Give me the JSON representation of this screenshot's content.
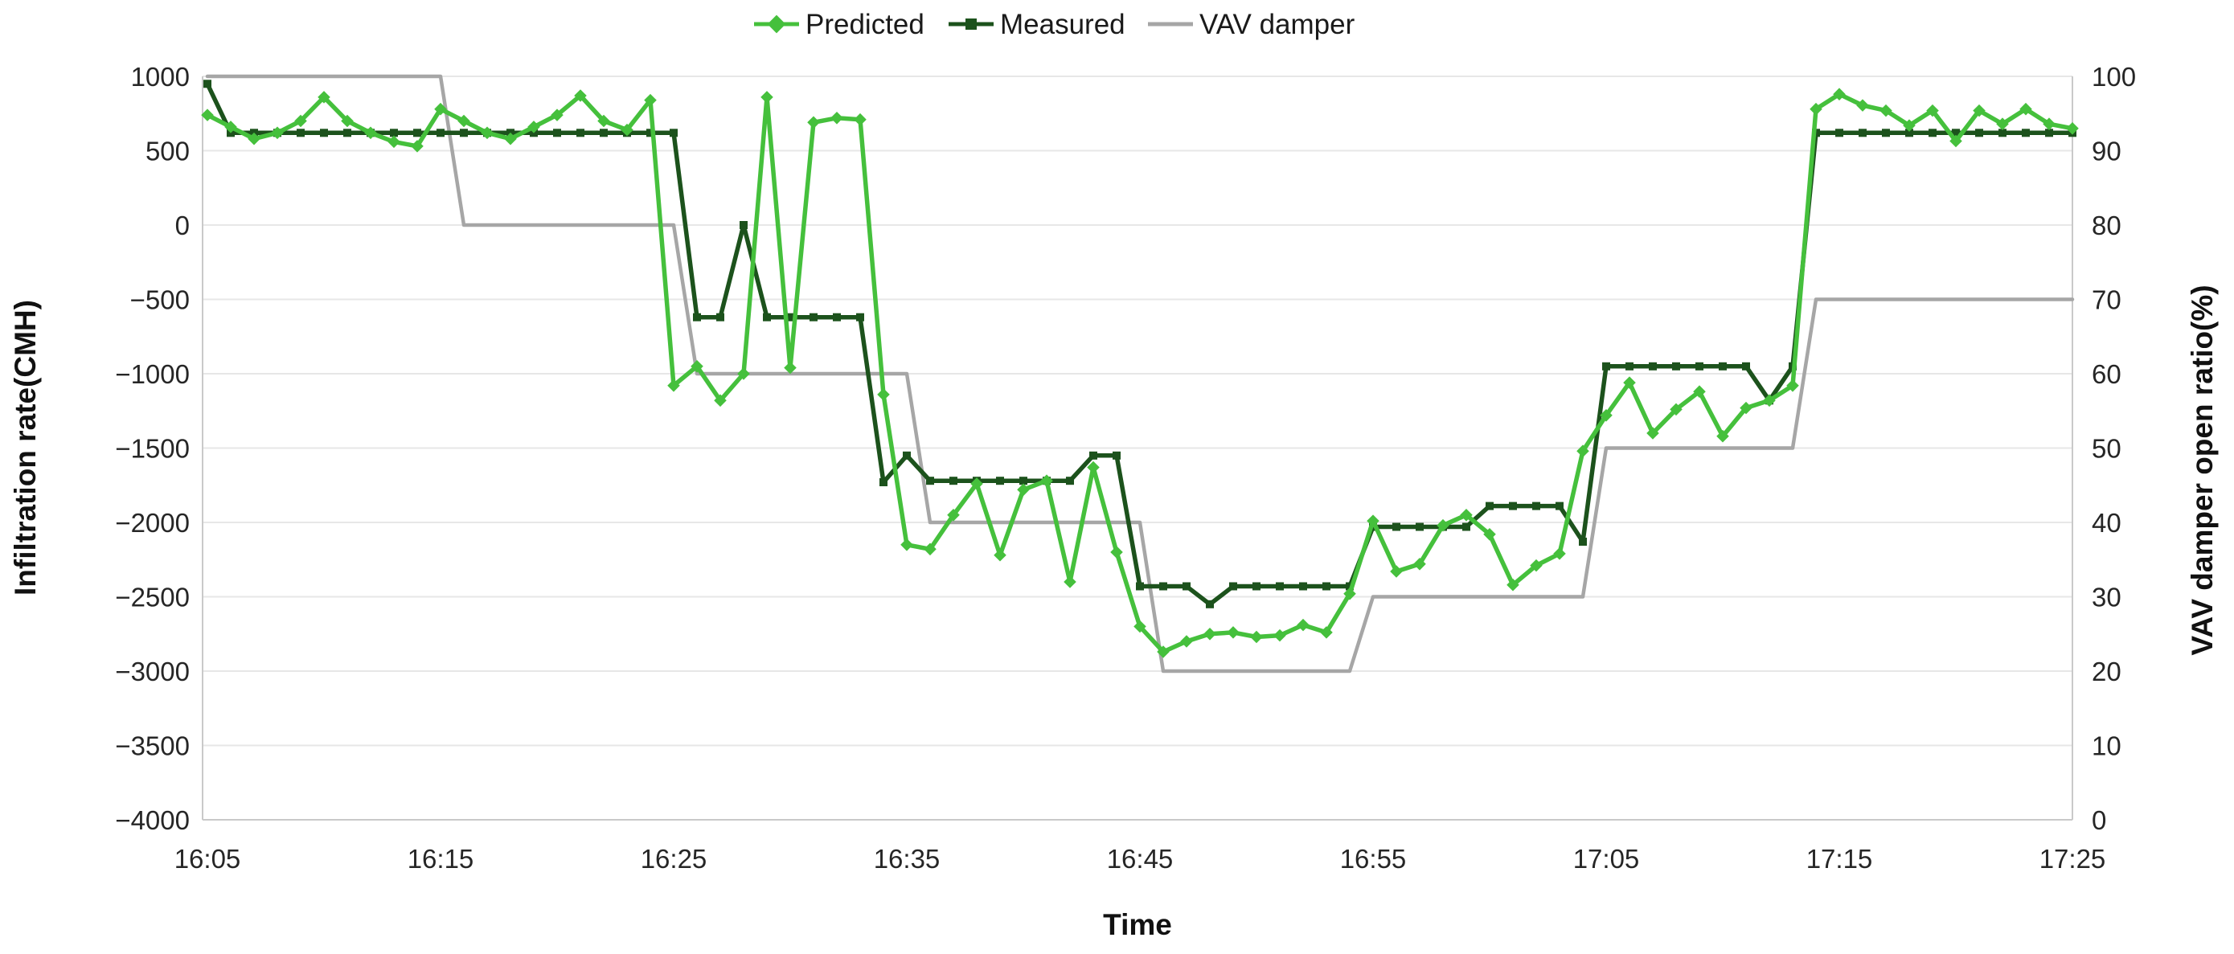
{
  "chart_data": {
    "type": "line",
    "title": "",
    "legend_position": "top",
    "grid": true,
    "x_axis": {
      "label": "Time",
      "tick_labels": [
        "16:05",
        "16:15",
        "16:25",
        "16:35",
        "16:45",
        "16:55",
        "17:05",
        "17:15",
        "17:25"
      ],
      "start": "16:05",
      "end": "17:25",
      "interval_minutes": 1,
      "points_count": 81
    },
    "y_left": {
      "label": "Infiltration rate(CMH)",
      "min": -4000,
      "max": 1000,
      "step": 500
    },
    "y_right": {
      "label": "VAV damper open ratio(%)",
      "min": 0,
      "max": 100,
      "step": 10
    },
    "series": [
      {
        "name": "Predicted",
        "axis": "left",
        "color": "#45c03c",
        "marker": "diamond",
        "values": [
          740,
          660,
          580,
          620,
          700,
          860,
          700,
          620,
          560,
          530,
          780,
          700,
          620,
          580,
          660,
          740,
          870,
          700,
          640,
          840,
          -1080,
          -950,
          -1180,
          -1000,
          860,
          -960,
          690,
          720,
          710,
          -1140,
          -2150,
          -2180,
          -1950,
          -1740,
          -2220,
          -1780,
          -1720,
          -2400,
          -1630,
          -2200,
          -2700,
          -2870,
          -2800,
          -2750,
          -2740,
          -2770,
          -2760,
          -2690,
          -2740,
          -2480,
          -1990,
          -2330,
          -2280,
          -2020,
          -1950,
          -2080,
          -2420,
          -2290,
          -2210,
          -1520,
          -1280,
          -1060,
          -1400,
          -1240,
          -1120,
          -1420,
          -1230,
          -1180,
          -1080,
          780,
          880,
          805,
          770,
          670,
          770,
          565,
          770,
          680,
          780,
          680,
          650
        ]
      },
      {
        "name": "Measured",
        "axis": "left",
        "color": "#1c521c",
        "marker": "square",
        "values": [
          950,
          620,
          620,
          620,
          620,
          620,
          620,
          620,
          620,
          620,
          620,
          620,
          620,
          620,
          620,
          620,
          620,
          620,
          620,
          620,
          620,
          -620,
          -620,
          0,
          -620,
          -620,
          -620,
          -620,
          -620,
          -1730,
          -1550,
          -1720,
          -1720,
          -1720,
          -1720,
          -1720,
          -1720,
          -1720,
          -1550,
          -1550,
          -2430,
          -2430,
          -2430,
          -2550,
          -2430,
          -2430,
          -2430,
          -2430,
          -2430,
          -2430,
          -2030,
          -2030,
          -2030,
          -2030,
          -2030,
          -1890,
          -1890,
          -1890,
          -1890,
          -2130,
          -950,
          -950,
          -950,
          -950,
          -950,
          -950,
          -950,
          -1180,
          -950,
          620,
          620,
          620,
          620,
          620,
          620,
          620,
          620,
          620,
          620,
          620,
          620
        ]
      },
      {
        "name": "VAV damper",
        "axis": "right",
        "color": "#a6a6a6",
        "marker": "none",
        "values": [
          100,
          100,
          100,
          100,
          100,
          100,
          100,
          100,
          100,
          100,
          100,
          80,
          80,
          80,
          80,
          80,
          80,
          80,
          80,
          80,
          80,
          60,
          60,
          60,
          60,
          60,
          60,
          60,
          60,
          60,
          60,
          40,
          40,
          40,
          40,
          40,
          40,
          40,
          40,
          40,
          40,
          20,
          20,
          20,
          20,
          20,
          20,
          20,
          20,
          20,
          30,
          30,
          30,
          30,
          30,
          30,
          30,
          30,
          30,
          30,
          50,
          50,
          50,
          50,
          50,
          50,
          50,
          50,
          50,
          70,
          70,
          70,
          70,
          70,
          70,
          70,
          70,
          70,
          70,
          70,
          70
        ]
      }
    ]
  },
  "colors": {
    "background": "#ffffff",
    "gridline": "#e7e7e7",
    "axis_border": "#c9c9c9",
    "tick_text": "#262626"
  }
}
